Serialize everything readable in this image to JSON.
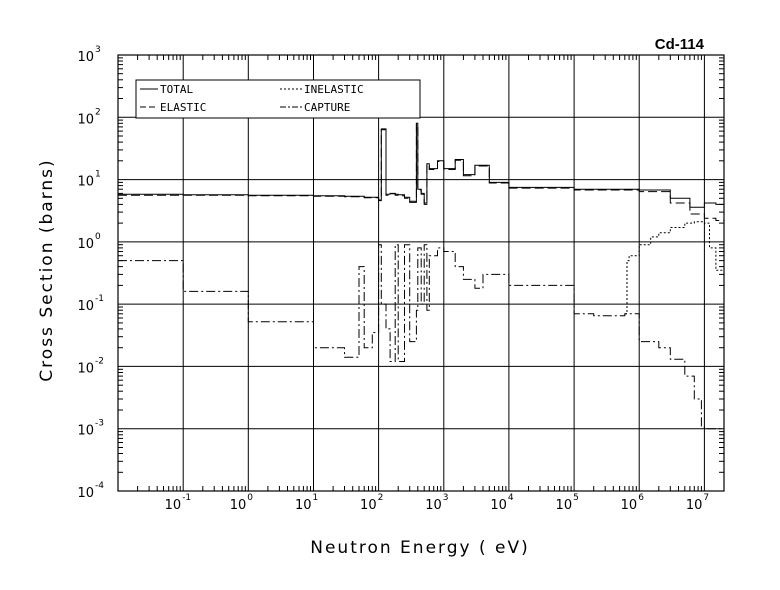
{
  "chart_data": {
    "type": "line",
    "title": "Cd-114",
    "xlabel": "Neutron Energy ( eV)",
    "ylabel": "Cross Section (barns)",
    "x_scale": "log",
    "y_scale": "log",
    "xlim": [
      0.01,
      20000000
    ],
    "ylim": [
      0.0001,
      1000
    ],
    "grid": true,
    "legend_position": "top-left",
    "x_ticks": [
      {
        "base": "10",
        "exp": "-1",
        "value": 0.1
      },
      {
        "base": "10",
        "exp": "0",
        "value": 1
      },
      {
        "base": "10",
        "exp": "1",
        "value": 10
      },
      {
        "base": "10",
        "exp": "2",
        "value": 100
      },
      {
        "base": "10",
        "exp": "3",
        "value": 1000
      },
      {
        "base": "10",
        "exp": "4",
        "value": 10000
      },
      {
        "base": "10",
        "exp": "5",
        "value": 100000
      },
      {
        "base": "10",
        "exp": "6",
        "value": 1000000
      },
      {
        "base": "10",
        "exp": "7",
        "value": 10000000
      }
    ],
    "y_ticks": [
      {
        "base": "10",
        "exp": "3",
        "value": 1000
      },
      {
        "base": "10",
        "exp": "2",
        "value": 100
      },
      {
        "base": "10",
        "exp": "1",
        "value": 10
      },
      {
        "base": "10",
        "exp": "0",
        "value": 1
      },
      {
        "base": "10",
        "exp": "-1",
        "value": 0.1
      },
      {
        "base": "10",
        "exp": "-2",
        "value": 0.01
      },
      {
        "base": "10",
        "exp": "-3",
        "value": 0.001
      },
      {
        "base": "10",
        "exp": "-4",
        "value": 0.0001
      }
    ],
    "series": [
      {
        "name": "TOTAL",
        "dash": "",
        "x": [
          0.01,
          0.1,
          1,
          10,
          30,
          60,
          100,
          110,
          130,
          150,
          180,
          200,
          250,
          300,
          380,
          400,
          450,
          500,
          550,
          600,
          800,
          1000,
          1500,
          2000,
          3000,
          5000,
          10000,
          100000,
          1000000,
          3000000,
          6000000,
          10000000,
          15000000,
          20000000
        ],
        "y": [
          5.8,
          5.7,
          5.6,
          5.5,
          5.4,
          5.2,
          4.7,
          65,
          5.8,
          6.0,
          5.8,
          5.7,
          5.2,
          4.5,
          80,
          7.0,
          6.0,
          4.2,
          18,
          15,
          20,
          15,
          21,
          12,
          17,
          9.0,
          7.5,
          7.0,
          6.8,
          5.0,
          3.6,
          4.2,
          4.0,
          3.2
        ]
      },
      {
        "name": "ELASTIC",
        "dash": "9,4",
        "x": [
          0.01,
          0.1,
          1,
          10,
          30,
          60,
          100,
          110,
          130,
          150,
          180,
          200,
          250,
          300,
          380,
          400,
          450,
          500,
          550,
          600,
          800,
          1000,
          1500,
          2000,
          3000,
          5000,
          10000,
          100000,
          1000000,
          3000000,
          6000000,
          10000000,
          15000000,
          20000000
        ],
        "y": [
          5.6,
          5.6,
          5.5,
          5.4,
          5.3,
          5.1,
          4.6,
          63,
          5.6,
          5.9,
          5.6,
          5.5,
          5.0,
          4.3,
          78,
          6.8,
          5.8,
          4.0,
          17.5,
          14.5,
          19.5,
          14.5,
          20.5,
          11.5,
          16.5,
          8.8,
          7.3,
          6.8,
          6.4,
          4.2,
          2.8,
          2.4,
          2.2,
          1.8
        ]
      },
      {
        "name": "INELASTIC",
        "dash": "2,2",
        "x": [
          600000,
          650000,
          700000,
          1000000,
          1500000,
          2000000,
          3000000,
          5000000,
          7000000,
          10000000,
          12000000,
          15000000,
          20000000
        ],
        "y": [
          0.07,
          0.5,
          0.6,
          0.9,
          1.2,
          1.4,
          1.7,
          2.0,
          2.1,
          2.0,
          0.8,
          0.35,
          0.2
        ]
      },
      {
        "name": "CAPTURE",
        "dash": "9,3,2,3",
        "x": [
          0.01,
          0.1,
          1,
          10,
          30,
          45,
          50,
          60,
          80,
          100,
          110,
          130,
          150,
          180,
          200,
          250,
          300,
          380,
          400,
          450,
          500,
          550,
          600,
          800,
          1000,
          1500,
          2000,
          3000,
          4000,
          10000,
          100000,
          200000,
          300000,
          600000,
          1000000,
          2000000,
          3000000,
          5000000,
          7000000,
          9000000,
          10000000,
          12000000
        ],
        "y": [
          0.5,
          0.16,
          0.052,
          0.02,
          0.014,
          0.014,
          0.4,
          0.02,
          0.035,
          0.9,
          0.1,
          0.04,
          0.012,
          0.9,
          0.012,
          0.9,
          0.025,
          0.08,
          0.8,
          0.1,
          0.9,
          0.08,
          0.6,
          0.8,
          0.7,
          0.4,
          0.25,
          0.18,
          0.3,
          0.2,
          0.07,
          0.065,
          0.065,
          0.07,
          0.025,
          0.02,
          0.013,
          0.007,
          0.003,
          0.0011,
          0.001,
          0.001
        ]
      }
    ]
  }
}
